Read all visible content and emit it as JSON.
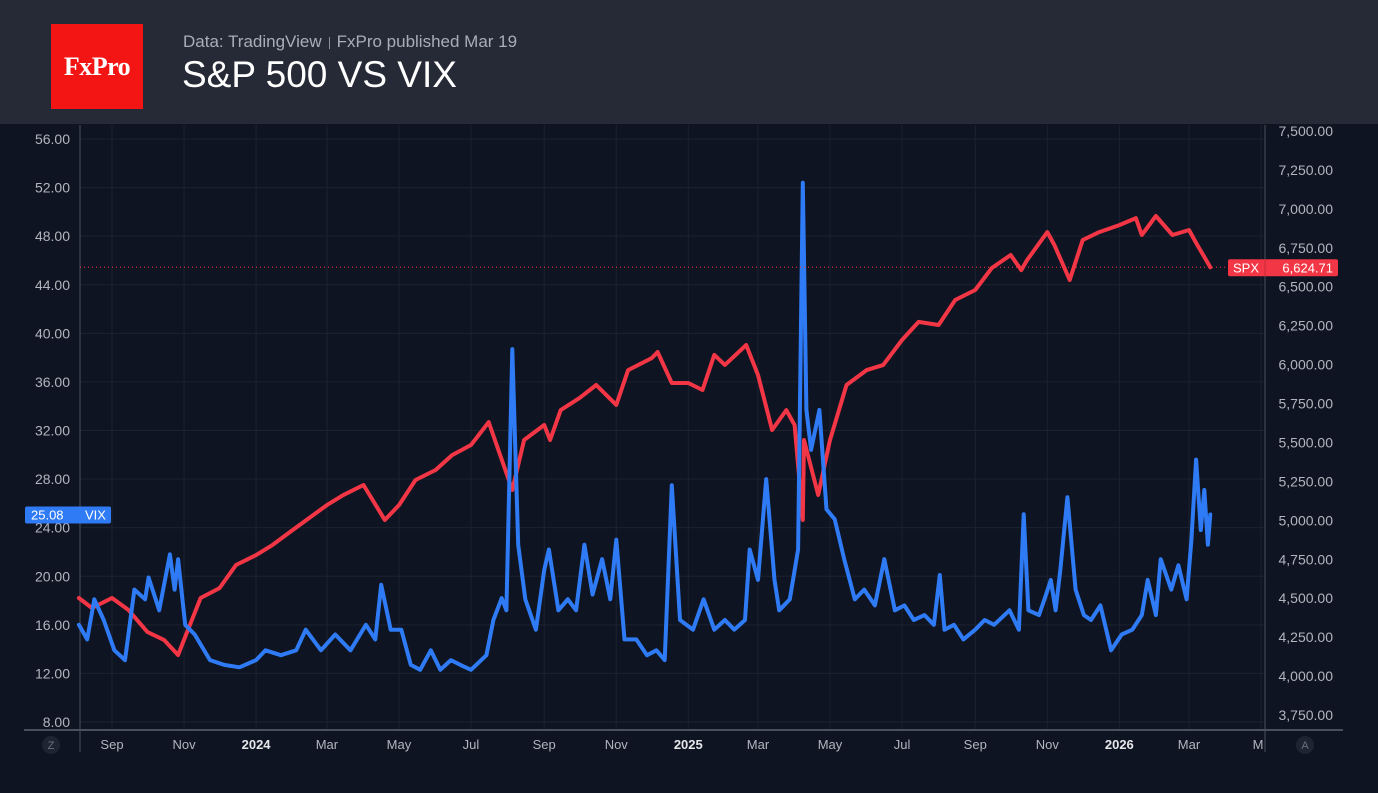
{
  "header": {
    "logo_text": "FxPro",
    "source": "Data: TradingView",
    "published": "FxPro published Mar 19",
    "title": "S&P 500 VS VIX"
  },
  "chart_data": {
    "type": "line",
    "title": "S&P 500 VS VIX",
    "grid": true,
    "colors": {
      "SPX": "#f23645",
      "VIX": "#2f7bf5",
      "background": "#0e1421"
    },
    "x_ticks": [
      {
        "label": "Sep",
        "date": "2023-09-01",
        "bold": false
      },
      {
        "label": "Nov",
        "date": "2023-11-01",
        "bold": false
      },
      {
        "label": "2024",
        "date": "2024-01-01",
        "bold": true
      },
      {
        "label": "Mar",
        "date": "2024-03-01",
        "bold": false
      },
      {
        "label": "May",
        "date": "2024-05-01",
        "bold": false
      },
      {
        "label": "Jul",
        "date": "2024-07-01",
        "bold": false
      },
      {
        "label": "Sep",
        "date": "2024-09-01",
        "bold": false
      },
      {
        "label": "Nov",
        "date": "2024-11-01",
        "bold": false
      },
      {
        "label": "2025",
        "date": "2025-01-01",
        "bold": true
      },
      {
        "label": "Mar",
        "date": "2025-03-01",
        "bold": false
      },
      {
        "label": "May",
        "date": "2025-05-01",
        "bold": false
      },
      {
        "label": "Jul",
        "date": "2025-07-01",
        "bold": false
      },
      {
        "label": "Sep",
        "date": "2025-09-01",
        "bold": false
      },
      {
        "label": "Nov",
        "date": "2025-11-01",
        "bold": false
      },
      {
        "label": "2026",
        "date": "2026-01-01",
        "bold": true
      },
      {
        "label": "Mar",
        "date": "2026-03-01",
        "bold": false
      },
      {
        "label": "M",
        "date": "2026-05-01",
        "bold": false
      }
    ],
    "left_axis": {
      "series": "VIX",
      "ylim": [
        8,
        56
      ],
      "ticks": [
        "56.00",
        "52.00",
        "48.00",
        "44.00",
        "40.00",
        "36.00",
        "32.00",
        "28.00",
        "24.00",
        "20.00",
        "16.00",
        "12.00",
        "8.00"
      ]
    },
    "right_axis": {
      "series": "SPX",
      "ylim": [
        3750,
        7500
      ],
      "ticks": [
        "7,500.00",
        "7,250.00",
        "7,000.00",
        "6,750.00",
        "6,500.00",
        "6,250.00",
        "6,000.00",
        "5,750.00",
        "5,500.00",
        "5,250.00",
        "5,000.00",
        "4,750.00",
        "4,500.00",
        "4,250.00",
        "4,000.00",
        "3,750.00"
      ]
    },
    "axis_buttons": {
      "left": "Z",
      "right": "A"
    },
    "series": [
      {
        "name": "SPX",
        "axis": "right",
        "last_value": 6624.71,
        "last_label": "6,624.71",
        "points": [
          [
            "2023-08-04",
            4501
          ],
          [
            "2023-08-15",
            4437
          ],
          [
            "2023-09-01",
            4501
          ],
          [
            "2023-09-15",
            4424
          ],
          [
            "2023-10-01",
            4283
          ],
          [
            "2023-10-15",
            4232
          ],
          [
            "2023-10-27",
            4135
          ],
          [
            "2023-11-01",
            4232
          ],
          [
            "2023-11-15",
            4501
          ],
          [
            "2023-12-01",
            4565
          ],
          [
            "2023-12-15",
            4713
          ],
          [
            "2024-01-01",
            4777
          ],
          [
            "2024-01-15",
            4842
          ],
          [
            "2024-02-01",
            4938
          ],
          [
            "2024-02-15",
            5015
          ],
          [
            "2024-03-01",
            5098
          ],
          [
            "2024-03-15",
            5163
          ],
          [
            "2024-04-01",
            5227
          ],
          [
            "2024-04-19",
            5002
          ],
          [
            "2024-05-01",
            5098
          ],
          [
            "2024-05-15",
            5259
          ],
          [
            "2024-06-01",
            5323
          ],
          [
            "2024-06-15",
            5419
          ],
          [
            "2024-07-01",
            5484
          ],
          [
            "2024-07-16",
            5631
          ],
          [
            "2024-08-05",
            5195
          ],
          [
            "2024-08-15",
            5516
          ],
          [
            "2024-09-01",
            5612
          ],
          [
            "2024-09-06",
            5516
          ],
          [
            "2024-09-15",
            5708
          ],
          [
            "2024-10-01",
            5786
          ],
          [
            "2024-10-15",
            5869
          ],
          [
            "2024-11-01",
            5741
          ],
          [
            "2024-11-11",
            5965
          ],
          [
            "2024-12-01",
            6042
          ],
          [
            "2024-12-06",
            6081
          ],
          [
            "2024-12-18",
            5882
          ],
          [
            "2025-01-01",
            5882
          ],
          [
            "2025-01-13",
            5837
          ],
          [
            "2025-01-23",
            6062
          ],
          [
            "2025-02-01",
            5998
          ],
          [
            "2025-02-19",
            6126
          ],
          [
            "2025-03-01",
            5933
          ],
          [
            "2025-03-13",
            5580
          ],
          [
            "2025-03-25",
            5708
          ],
          [
            "2025-04-01",
            5612
          ],
          [
            "2025-04-08",
            5002
          ],
          [
            "2025-04-09",
            5516
          ],
          [
            "2025-04-21",
            5163
          ],
          [
            "2025-05-01",
            5516
          ],
          [
            "2025-05-15",
            5869
          ],
          [
            "2025-06-01",
            5965
          ],
          [
            "2025-06-15",
            5997
          ],
          [
            "2025-07-01",
            6158
          ],
          [
            "2025-07-15",
            6274
          ],
          [
            "2025-08-01",
            6254
          ],
          [
            "2025-08-15",
            6415
          ],
          [
            "2025-09-01",
            6479
          ],
          [
            "2025-09-15",
            6620
          ],
          [
            "2025-10-01",
            6704
          ],
          [
            "2025-10-10",
            6607
          ],
          [
            "2025-10-15",
            6672
          ],
          [
            "2025-11-01",
            6851
          ],
          [
            "2025-11-07",
            6768
          ],
          [
            "2025-11-20",
            6543
          ],
          [
            "2025-12-01",
            6800
          ],
          [
            "2025-12-15",
            6851
          ],
          [
            "2026-01-01",
            6896
          ],
          [
            "2026-01-15",
            6941
          ],
          [
            "2026-01-20",
            6832
          ],
          [
            "2026-02-01",
            6954
          ],
          [
            "2026-02-15",
            6832
          ],
          [
            "2026-03-01",
            6864
          ],
          [
            "2026-03-08",
            6768
          ],
          [
            "2026-03-13",
            6704
          ],
          [
            "2026-03-19",
            6624.71
          ]
        ]
      },
      {
        "name": "VIX",
        "axis": "left",
        "last_value": 25.08,
        "last_label": "25.08",
        "points": [
          [
            "2023-08-04",
            16.0
          ],
          [
            "2023-08-11",
            14.8
          ],
          [
            "2023-08-17",
            18.1
          ],
          [
            "2023-08-25",
            16.4
          ],
          [
            "2023-09-03",
            13.9
          ],
          [
            "2023-09-12",
            13.1
          ],
          [
            "2023-09-20",
            18.9
          ],
          [
            "2023-09-29",
            18.1
          ],
          [
            "2023-10-02",
            19.9
          ],
          [
            "2023-10-11",
            17.2
          ],
          [
            "2023-10-20",
            21.8
          ],
          [
            "2023-10-24",
            18.9
          ],
          [
            "2023-10-27",
            21.4
          ],
          [
            "2023-11-02",
            16.0
          ],
          [
            "2023-11-10",
            15.2
          ],
          [
            "2023-11-23",
            13.1
          ],
          [
            "2023-12-05",
            12.7
          ],
          [
            "2023-12-18",
            12.5
          ],
          [
            "2024-01-01",
            13.1
          ],
          [
            "2024-01-09",
            13.9
          ],
          [
            "2024-01-22",
            13.5
          ],
          [
            "2024-02-04",
            13.9
          ],
          [
            "2024-02-12",
            15.6
          ],
          [
            "2024-02-25",
            13.9
          ],
          [
            "2024-03-08",
            15.2
          ],
          [
            "2024-03-21",
            13.9
          ],
          [
            "2024-04-03",
            16.0
          ],
          [
            "2024-04-11",
            14.8
          ],
          [
            "2024-04-16",
            19.3
          ],
          [
            "2024-04-24",
            15.6
          ],
          [
            "2024-05-03",
            15.6
          ],
          [
            "2024-05-11",
            12.7
          ],
          [
            "2024-05-19",
            12.3
          ],
          [
            "2024-05-28",
            13.9
          ],
          [
            "2024-06-05",
            12.3
          ],
          [
            "2024-06-14",
            13.1
          ],
          [
            "2024-06-22",
            12.7
          ],
          [
            "2024-07-01",
            12.3
          ],
          [
            "2024-07-14",
            13.5
          ],
          [
            "2024-07-20",
            16.4
          ],
          [
            "2024-07-27",
            18.2
          ],
          [
            "2024-07-31",
            17.2
          ],
          [
            "2024-08-05",
            38.7
          ],
          [
            "2024-08-10",
            22.6
          ],
          [
            "2024-08-16",
            18.1
          ],
          [
            "2024-08-25",
            15.6
          ],
          [
            "2024-09-01",
            20.5
          ],
          [
            "2024-09-05",
            22.2
          ],
          [
            "2024-09-13",
            17.2
          ],
          [
            "2024-09-21",
            18.1
          ],
          [
            "2024-09-28",
            17.2
          ],
          [
            "2024-10-05",
            22.6
          ],
          [
            "2024-10-12",
            18.5
          ],
          [
            "2024-10-20",
            21.4
          ],
          [
            "2024-10-27",
            18.1
          ],
          [
            "2024-11-01",
            23.0
          ],
          [
            "2024-11-08",
            14.8
          ],
          [
            "2024-11-18",
            14.8
          ],
          [
            "2024-11-27",
            13.5
          ],
          [
            "2024-12-05",
            13.9
          ],
          [
            "2024-12-12",
            13.1
          ],
          [
            "2024-12-18",
            27.5
          ],
          [
            "2024-12-25",
            16.4
          ],
          [
            "2025-01-05",
            15.6
          ],
          [
            "2025-01-14",
            18.1
          ],
          [
            "2025-01-23",
            15.6
          ],
          [
            "2025-02-01",
            16.4
          ],
          [
            "2025-02-09",
            15.6
          ],
          [
            "2025-02-18",
            16.4
          ],
          [
            "2025-02-22",
            22.2
          ],
          [
            "2025-03-01",
            19.7
          ],
          [
            "2025-03-08",
            28.0
          ],
          [
            "2025-03-15",
            19.7
          ],
          [
            "2025-03-19",
            17.2
          ],
          [
            "2025-03-28",
            18.1
          ],
          [
            "2025-04-04",
            22.2
          ],
          [
            "2025-04-08",
            52.4
          ],
          [
            "2025-04-11",
            33.7
          ],
          [
            "2025-04-15",
            30.4
          ],
          [
            "2025-04-22",
            33.7
          ],
          [
            "2025-04-28",
            25.5
          ],
          [
            "2025-05-05",
            24.7
          ],
          [
            "2025-05-13",
            21.4
          ],
          [
            "2025-05-22",
            18.1
          ],
          [
            "2025-05-30",
            18.9
          ],
          [
            "2025-06-08",
            17.6
          ],
          [
            "2025-06-16",
            21.4
          ],
          [
            "2025-06-25",
            17.2
          ],
          [
            "2025-07-03",
            17.6
          ],
          [
            "2025-07-11",
            16.4
          ],
          [
            "2025-07-20",
            16.8
          ],
          [
            "2025-07-28",
            16.0
          ],
          [
            "2025-08-02",
            20.1
          ],
          [
            "2025-08-06",
            15.6
          ],
          [
            "2025-08-14",
            16.0
          ],
          [
            "2025-08-22",
            14.8
          ],
          [
            "2025-09-01",
            15.6
          ],
          [
            "2025-09-09",
            16.4
          ],
          [
            "2025-09-17",
            16.0
          ],
          [
            "2025-09-30",
            17.2
          ],
          [
            "2025-10-08",
            15.6
          ],
          [
            "2025-10-12",
            25.1
          ],
          [
            "2025-10-16",
            17.2
          ],
          [
            "2025-10-25",
            16.8
          ],
          [
            "2025-10-31",
            18.5
          ],
          [
            "2025-11-04",
            19.7
          ],
          [
            "2025-11-08",
            17.2
          ],
          [
            "2025-11-12",
            20.5
          ],
          [
            "2025-11-18",
            26.5
          ],
          [
            "2025-11-25",
            18.9
          ],
          [
            "2025-12-02",
            16.8
          ],
          [
            "2025-12-08",
            16.4
          ],
          [
            "2025-12-16",
            17.6
          ],
          [
            "2025-12-25",
            13.9
          ],
          [
            "2026-01-03",
            15.2
          ],
          [
            "2026-01-12",
            15.6
          ],
          [
            "2026-01-20",
            16.8
          ],
          [
            "2026-01-25",
            19.7
          ],
          [
            "2026-02-01",
            16.8
          ],
          [
            "2026-02-05",
            21.4
          ],
          [
            "2026-02-14",
            18.9
          ],
          [
            "2026-02-20",
            20.9
          ],
          [
            "2026-02-27",
            18.1
          ],
          [
            "2026-03-03",
            23.0
          ],
          [
            "2026-03-07",
            29.6
          ],
          [
            "2026-03-11",
            23.8
          ],
          [
            "2026-03-14",
            27.1
          ],
          [
            "2026-03-17",
            22.6
          ],
          [
            "2026-03-19",
            25.08
          ]
        ]
      }
    ]
  }
}
